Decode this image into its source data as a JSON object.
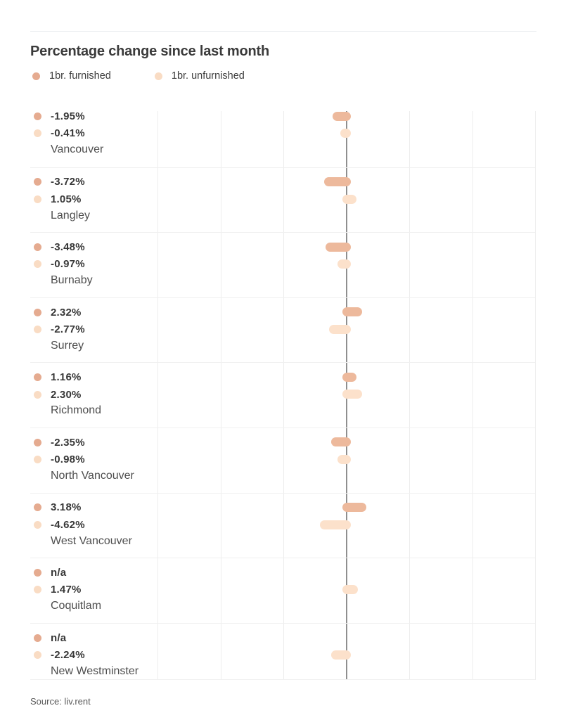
{
  "title": "Percentage change since last month",
  "legend": {
    "furnished": "1br. furnished",
    "unfurnished": "1br. unfurnished"
  },
  "source": "Source: liv.rent",
  "colors": {
    "furnished_bar": "#edb99c",
    "unfurnished_bar": "#fce1cb",
    "furnished_dot": "#e5ab90",
    "unfurnished_dot": "#f9dcc4",
    "axis": "#8f8f8f",
    "grid": "#ededed",
    "separator": "#f0f0f0"
  },
  "chart_data": {
    "type": "bar",
    "orientation": "horizontal",
    "title": "Percentage change since last month",
    "unit": "%",
    "categories": [
      "Vancouver",
      "Langley",
      "Burnaby",
      "Surrey",
      "Richmond",
      "North Vancouver",
      "West Vancouver",
      "Coquitlam",
      "New Westminster"
    ],
    "series": [
      {
        "name": "1br. furnished",
        "values": [
          -1.95,
          -3.72,
          -3.48,
          2.32,
          1.16,
          -2.35,
          3.18,
          null,
          null
        ]
      },
      {
        "name": "1br. unfurnished",
        "values": [
          -0.41,
          1.05,
          -0.97,
          -2.77,
          2.3,
          -0.98,
          -4.62,
          1.47,
          -2.24
        ]
      }
    ],
    "not_available_label": "n/a",
    "layout": {
      "zero_line": true,
      "gridlines": "vertical",
      "legend_position": "top-left",
      "value_labels_position": "left-of-rows"
    },
    "xlim_px_scale_note": "approx 6.8px per 1% around centered zero axis"
  },
  "rows": [
    {
      "city": "Vancouver",
      "furnished_label": "-1.95%",
      "unfurnished_label": "-0.41%"
    },
    {
      "city": "Langley",
      "furnished_label": "-3.72%",
      "unfurnished_label": "1.05%"
    },
    {
      "city": "Burnaby",
      "furnished_label": "-3.48%",
      "unfurnished_label": "-0.97%"
    },
    {
      "city": "Surrey",
      "furnished_label": "2.32%",
      "unfurnished_label": "-2.77%"
    },
    {
      "city": "Richmond",
      "furnished_label": "1.16%",
      "unfurnished_label": "2.30%"
    },
    {
      "city": "North Vancouver",
      "furnished_label": "-2.35%",
      "unfurnished_label": "-0.98%"
    },
    {
      "city": "West Vancouver",
      "furnished_label": "3.18%",
      "unfurnished_label": "-4.62%"
    },
    {
      "city": "Coquitlam",
      "furnished_label": "n/a",
      "unfurnished_label": "1.47%"
    },
    {
      "city": "New Westminster",
      "furnished_label": "n/a",
      "unfurnished_label": "-2.24%"
    }
  ]
}
